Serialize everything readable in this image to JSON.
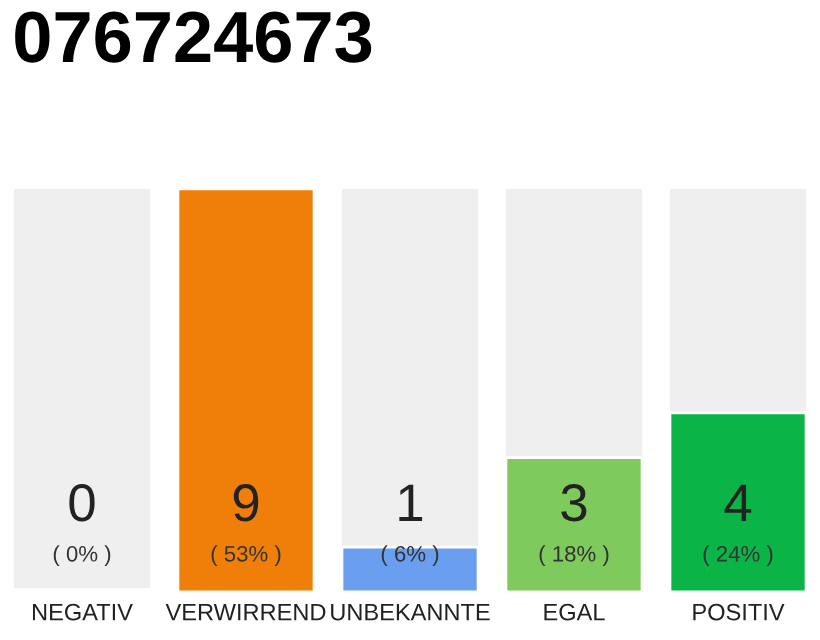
{
  "chart_data": {
    "type": "bar",
    "title": "076724673",
    "categories": [
      "NEGATIV",
      "VERWIRREND",
      "UNBEKANNTE",
      "EGAL",
      "POSITIV"
    ],
    "values": [
      0,
      9,
      1,
      3,
      4
    ],
    "colors": [
      "#e0203a",
      "#f07f0a",
      "#6a9ff0",
      "#7eca5c",
      "#0bb446"
    ],
    "ylim": [
      0,
      9
    ],
    "tick_labels": "x",
    "data_labels": true,
    "annotations": [
      "( 0% )",
      "( 53% )",
      "( 6% )",
      "( 18% )",
      "( 24% )"
    ]
  }
}
